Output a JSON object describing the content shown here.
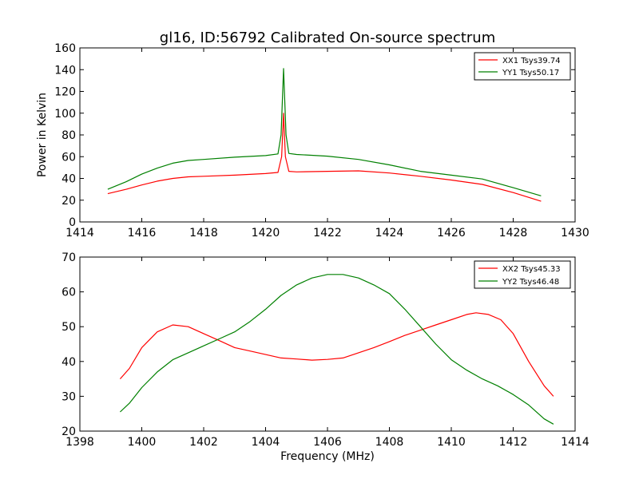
{
  "figure": {
    "title": "gl16, ID:56792 Calibrated On-source spectrum",
    "background": "#ffffff"
  },
  "colors": {
    "XX": "#ff0000",
    "YY": "#008000"
  },
  "chart_data": [
    {
      "type": "line",
      "title": "gl16, ID:56792 Calibrated On-source spectrum",
      "xlabel": "",
      "ylabel": "Power in Kelvin",
      "xlim": [
        1414,
        1430
      ],
      "ylim": [
        0,
        160
      ],
      "xticks": [
        1414,
        1416,
        1418,
        1420,
        1422,
        1424,
        1426,
        1428,
        1430
      ],
      "yticks": [
        0,
        20,
        40,
        60,
        80,
        100,
        120,
        140,
        160
      ],
      "grid": false,
      "legend_position": "top-right",
      "series": [
        {
          "name": "XX1 Tsys39.74",
          "color": "#ff0000",
          "points": [
            [
              1414.9,
              26
            ],
            [
              1415.5,
              30
            ],
            [
              1416,
              34
            ],
            [
              1416.5,
              37.5
            ],
            [
              1417,
              40
            ],
            [
              1417.5,
              41.5
            ],
            [
              1418,
              42
            ],
            [
              1419,
              43
            ],
            [
              1420,
              44.5
            ],
            [
              1420.4,
              45.5
            ],
            [
              1420.52,
              60
            ],
            [
              1420.58,
              100
            ],
            [
              1420.64,
              60
            ],
            [
              1420.75,
              46.5
            ],
            [
              1421,
              46
            ],
            [
              1422,
              46.5
            ],
            [
              1423,
              47
            ],
            [
              1424,
              45
            ],
            [
              1425,
              42
            ],
            [
              1426,
              38.5
            ],
            [
              1427,
              34.5
            ],
            [
              1428,
              27
            ],
            [
              1428.9,
              19
            ]
          ]
        },
        {
          "name": "YY1 Tsys50.17",
          "color": "#008000",
          "points": [
            [
              1414.9,
              30
            ],
            [
              1415.5,
              37
            ],
            [
              1416,
              44
            ],
            [
              1416.5,
              49.5
            ],
            [
              1417,
              54
            ],
            [
              1417.5,
              56.5
            ],
            [
              1418,
              57.5
            ],
            [
              1419,
              59.5
            ],
            [
              1420,
              61
            ],
            [
              1420.4,
              62.5
            ],
            [
              1420.5,
              80
            ],
            [
              1420.58,
              141
            ],
            [
              1420.66,
              80
            ],
            [
              1420.75,
              63
            ],
            [
              1421,
              62
            ],
            [
              1422,
              60.5
            ],
            [
              1423,
              57.5
            ],
            [
              1424,
              52.5
            ],
            [
              1425,
              46.5
            ],
            [
              1426,
              43
            ],
            [
              1427,
              39.5
            ],
            [
              1428,
              31.5
            ],
            [
              1428.9,
              24
            ]
          ]
        }
      ]
    },
    {
      "type": "line",
      "title": "",
      "xlabel": "Frequency (MHz)",
      "ylabel": "",
      "xlim": [
        1398,
        1414
      ],
      "ylim": [
        20,
        70
      ],
      "xticks": [
        1398,
        1400,
        1402,
        1404,
        1406,
        1408,
        1410,
        1412,
        1414
      ],
      "yticks": [
        20,
        30,
        40,
        50,
        60,
        70
      ],
      "grid": false,
      "legend_position": "top-right",
      "series": [
        {
          "name": "XX2 Tsys45.33",
          "color": "#ff0000",
          "points": [
            [
              1399.3,
              35
            ],
            [
              1399.6,
              38
            ],
            [
              1400,
              44
            ],
            [
              1400.5,
              48.5
            ],
            [
              1401,
              50.5
            ],
            [
              1401.5,
              50
            ],
            [
              1402,
              48
            ],
            [
              1402.5,
              46
            ],
            [
              1403,
              44
            ],
            [
              1403.5,
              43
            ],
            [
              1404,
              42
            ],
            [
              1404.5,
              41
            ],
            [
              1405,
              40.7
            ],
            [
              1405.5,
              40.4
            ],
            [
              1406,
              40.6
            ],
            [
              1406.5,
              41
            ],
            [
              1407,
              42.5
            ],
            [
              1407.5,
              44
            ],
            [
              1408,
              45.7
            ],
            [
              1408.5,
              47.5
            ],
            [
              1409,
              49
            ],
            [
              1409.5,
              50.5
            ],
            [
              1410,
              52
            ],
            [
              1410.5,
              53.5
            ],
            [
              1410.8,
              54
            ],
            [
              1411.2,
              53.5
            ],
            [
              1411.6,
              52
            ],
            [
              1412,
              48
            ],
            [
              1412.5,
              40
            ],
            [
              1413,
              33
            ],
            [
              1413.3,
              30
            ]
          ]
        },
        {
          "name": "YY2 Tsys46.48",
          "color": "#008000",
          "points": [
            [
              1399.3,
              25.5
            ],
            [
              1399.6,
              28
            ],
            [
              1400,
              32.5
            ],
            [
              1400.5,
              37
            ],
            [
              1401,
              40.5
            ],
            [
              1401.5,
              42.5
            ],
            [
              1402,
              44.5
            ],
            [
              1402.5,
              46.5
            ],
            [
              1403,
              48.5
            ],
            [
              1403.5,
              51.5
            ],
            [
              1404,
              55
            ],
            [
              1404.5,
              59
            ],
            [
              1405,
              62
            ],
            [
              1405.5,
              64
            ],
            [
              1406,
              65
            ],
            [
              1406.5,
              65
            ],
            [
              1407,
              64
            ],
            [
              1407.5,
              62
            ],
            [
              1408,
              59.5
            ],
            [
              1408.5,
              55
            ],
            [
              1409,
              50
            ],
            [
              1409.5,
              45
            ],
            [
              1410,
              40.5
            ],
            [
              1410.5,
              37.5
            ],
            [
              1411,
              35
            ],
            [
              1411.5,
              33
            ],
            [
              1412,
              30.5
            ],
            [
              1412.5,
              27.5
            ],
            [
              1413,
              23.5
            ],
            [
              1413.3,
              22
            ]
          ]
        }
      ]
    }
  ]
}
